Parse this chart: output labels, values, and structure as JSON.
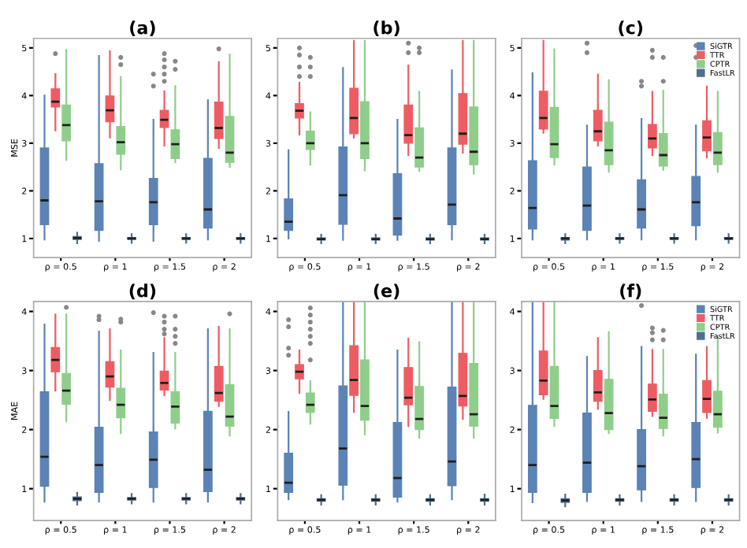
{
  "chart_data": [
    {
      "type": "box",
      "title": "(a)",
      "ylabel": "MSE",
      "categories": [
        "ρ = 0.5",
        "ρ = 1",
        "ρ = 1.5",
        "ρ = 2"
      ],
      "ylim": [
        0.6,
        5.2
      ],
      "yticks": [
        1,
        2,
        3,
        4,
        5
      ],
      "grid": false,
      "legend": false,
      "series": [
        {
          "color": "#5b83b5",
          "boxes": [
            {
              "low": 0.98,
              "q1": 1.29,
              "median": 1.8,
              "q3": 2.9,
              "high": 4.0
            },
            {
              "low": 0.95,
              "q1": 1.17,
              "median": 1.78,
              "q3": 2.57,
              "high": 4.83
            },
            {
              "low": 0.95,
              "q1": 1.29,
              "median": 1.76,
              "q3": 2.26,
              "high": 3.49,
              "outliers": [
                4.2,
                4.45
              ]
            },
            {
              "low": 0.98,
              "q1": 1.22,
              "median": 1.61,
              "q3": 2.68,
              "high": 3.9
            }
          ]
        },
        {
          "color": "#ee5c63",
          "boxes": [
            {
              "low": 3.27,
              "q1": 3.76,
              "median": 3.87,
              "q3": 4.14,
              "high": 4.45,
              "outliers": [
                4.88
              ]
            },
            {
              "low": 3.12,
              "q1": 3.45,
              "median": 3.69,
              "q3": 3.99,
              "high": 4.93
            },
            {
              "low": 2.95,
              "q1": 3.33,
              "median": 3.49,
              "q3": 3.69,
              "high": 4.09,
              "outliers": [
                4.3,
                4.45,
                4.6,
                4.75,
                4.88
              ]
            },
            {
              "low": 2.9,
              "q1": 3.1,
              "median": 3.32,
              "q3": 3.86,
              "high": 4.7,
              "outliers": [
                4.98
              ]
            }
          ]
        },
        {
          "color": "#8fce8a",
          "boxes": [
            {
              "low": 2.65,
              "q1": 3.05,
              "median": 3.38,
              "q3": 3.8,
              "high": 4.96
            },
            {
              "low": 2.45,
              "q1": 2.77,
              "median": 3.02,
              "q3": 3.35,
              "high": 4.39,
              "outliers": [
                4.65,
                4.8
              ]
            },
            {
              "low": 2.6,
              "q1": 2.68,
              "median": 2.98,
              "q3": 3.28,
              "high": 4.2,
              "outliers": [
                4.55,
                4.72
              ]
            },
            {
              "low": 2.5,
              "q1": 2.6,
              "median": 2.8,
              "q3": 3.56,
              "high": 4.86
            }
          ]
        },
        {
          "color": "#4e6f91",
          "boxes": [
            {
              "low": 0.9,
              "q1": 0.98,
              "median": 1.01,
              "q3": 1.04,
              "high": 1.12
            },
            {
              "low": 0.91,
              "q1": 0.98,
              "median": 1.0,
              "q3": 1.02,
              "high": 1.09
            },
            {
              "low": 0.91,
              "q1": 0.98,
              "median": 1.0,
              "q3": 1.02,
              "high": 1.09
            },
            {
              "low": 0.91,
              "q1": 0.98,
              "median": 1.0,
              "q3": 1.02,
              "high": 1.09
            }
          ]
        }
      ]
    },
    {
      "type": "box",
      "title": "(b)",
      "categories": [
        "ρ = 0.5",
        "ρ = 1",
        "ρ = 1.5",
        "ρ = 2"
      ],
      "ylim": [
        0.6,
        5.2
      ],
      "yticks": [
        1,
        2,
        3,
        4,
        5
      ],
      "grid": false,
      "legend": false,
      "series": [
        {
          "color": "#5b83b5",
          "boxes": [
            {
              "low": 1.0,
              "q1": 1.17,
              "median": 1.35,
              "q3": 1.83,
              "high": 2.85
            },
            {
              "low": 0.97,
              "q1": 1.3,
              "median": 1.91,
              "q3": 2.92,
              "high": 4.58
            },
            {
              "low": 0.97,
              "q1": 1.07,
              "median": 1.42,
              "q3": 2.36,
              "high": 3.49
            },
            {
              "low": 0.98,
              "q1": 1.29,
              "median": 1.71,
              "q3": 2.9,
              "high": 4.53
            }
          ]
        },
        {
          "color": "#ee5c63",
          "boxes": [
            {
              "low": 3.18,
              "q1": 3.53,
              "median": 3.68,
              "q3": 3.83,
              "high": 4.27,
              "outliers": [
                4.4,
                4.6,
                4.85,
                5.0
              ]
            },
            {
              "low": 3.12,
              "q1": 3.2,
              "median": 3.53,
              "q3": 4.15,
              "high": 5.15
            },
            {
              "low": 2.75,
              "q1": 3.0,
              "median": 3.17,
              "q3": 3.8,
              "high": 4.63,
              "outliers": [
                4.9,
                5.1
              ]
            },
            {
              "low": 2.8,
              "q1": 2.98,
              "median": 3.2,
              "q3": 4.04,
              "high": 5.15
            }
          ]
        },
        {
          "color": "#8fce8a",
          "boxes": [
            {
              "low": 2.55,
              "q1": 2.87,
              "median": 3.0,
              "q3": 3.25,
              "high": 3.65,
              "outliers": [
                4.4,
                4.6,
                4.8
              ]
            },
            {
              "low": 2.43,
              "q1": 2.68,
              "median": 3.0,
              "q3": 3.87,
              "high": 5.15
            },
            {
              "low": 2.42,
              "q1": 2.5,
              "median": 2.7,
              "q3": 3.32,
              "high": 4.08,
              "outliers": [
                4.9,
                5.0
              ]
            },
            {
              "low": 2.36,
              "q1": 2.55,
              "median": 2.82,
              "q3": 3.76,
              "high": 5.15
            }
          ]
        },
        {
          "color": "#4e6f91",
          "boxes": [
            {
              "low": 0.9,
              "q1": 0.97,
              "median": 0.99,
              "q3": 1.01,
              "high": 1.08
            },
            {
              "low": 0.9,
              "q1": 0.97,
              "median": 0.99,
              "q3": 1.01,
              "high": 1.08
            },
            {
              "low": 0.9,
              "q1": 0.97,
              "median": 0.99,
              "q3": 1.01,
              "high": 1.08
            },
            {
              "low": 0.9,
              "q1": 0.97,
              "median": 0.99,
              "q3": 1.01,
              "high": 1.08
            }
          ]
        }
      ]
    },
    {
      "type": "box",
      "title": "(c)",
      "categories": [
        "ρ = 0.5",
        "ρ = 1",
        "ρ = 1.5",
        "ρ = 2"
      ],
      "ylim": [
        0.6,
        5.2
      ],
      "yticks": [
        1,
        2,
        3,
        4,
        5
      ],
      "grid": false,
      "legend": "top right",
      "series": [
        {
          "name": "SiGTR",
          "color": "#5b83b5",
          "boxes": [
            {
              "low": 0.98,
              "q1": 1.2,
              "median": 1.64,
              "q3": 2.63,
              "high": 4.47
            },
            {
              "low": 0.98,
              "q1": 1.17,
              "median": 1.69,
              "q3": 2.5,
              "high": 3.37,
              "outliers": [
                4.9,
                5.1
              ]
            },
            {
              "low": 0.98,
              "q1": 1.22,
              "median": 1.61,
              "q3": 2.23,
              "high": 3.51,
              "outliers": [
                4.2,
                4.3
              ]
            },
            {
              "low": 0.98,
              "q1": 1.27,
              "median": 1.76,
              "q3": 2.3,
              "high": 3.37,
              "outliers": [
                4.8,
                5.05
              ]
            }
          ]
        },
        {
          "name": "TTR",
          "color": "#ee5c63",
          "boxes": [
            {
              "low": 3.22,
              "q1": 3.3,
              "median": 3.53,
              "q3": 4.09,
              "high": 5.15
            },
            {
              "low": 2.95,
              "q1": 3.05,
              "median": 3.25,
              "q3": 3.69,
              "high": 4.44
            },
            {
              "low": 2.75,
              "q1": 2.9,
              "median": 3.1,
              "q3": 3.39,
              "high": 4.08,
              "outliers": [
                4.8,
                4.95
              ]
            },
            {
              "low": 2.7,
              "q1": 2.84,
              "median": 3.12,
              "q3": 3.47,
              "high": 4.19
            }
          ]
        },
        {
          "name": "CPTR",
          "color": "#8fce8a",
          "boxes": [
            {
              "low": 2.55,
              "q1": 2.7,
              "median": 2.98,
              "q3": 3.75,
              "high": 4.97
            },
            {
              "low": 2.4,
              "q1": 2.55,
              "median": 2.85,
              "q3": 3.44,
              "high": 4.32
            },
            {
              "low": 2.44,
              "q1": 2.52,
              "median": 2.75,
              "q3": 3.2,
              "high": 4.1,
              "outliers": [
                4.3,
                4.8
              ]
            },
            {
              "low": 2.4,
              "q1": 2.55,
              "median": 2.8,
              "q3": 3.22,
              "high": 4.08
            }
          ]
        },
        {
          "name": "FastLR",
          "color": "#4e6f91",
          "boxes": [
            {
              "low": 0.9,
              "q1": 0.97,
              "median": 1.0,
              "q3": 1.02,
              "high": 1.09
            },
            {
              "low": 0.91,
              "q1": 0.98,
              "median": 1.0,
              "q3": 1.02,
              "high": 1.09
            },
            {
              "low": 0.91,
              "q1": 0.98,
              "median": 1.0,
              "q3": 1.02,
              "high": 1.09
            },
            {
              "low": 0.91,
              "q1": 0.98,
              "median": 1.0,
              "q3": 1.02,
              "high": 1.09
            }
          ]
        }
      ]
    },
    {
      "type": "box",
      "title": "(d)",
      "ylabel": "MAE",
      "categories": [
        "ρ = 0.5",
        "ρ = 1",
        "ρ = 1.5",
        "ρ = 2"
      ],
      "ylim": [
        0.46,
        4.17
      ],
      "yticks": [
        1,
        2,
        3,
        4
      ],
      "grid": false,
      "legend": false,
      "series": [
        {
          "color": "#5b83b5",
          "boxes": [
            {
              "low": 0.78,
              "q1": 1.04,
              "median": 1.54,
              "q3": 2.64,
              "high": 3.78
            },
            {
              "low": 0.78,
              "q1": 0.94,
              "median": 1.4,
              "q3": 2.04,
              "high": 3.66,
              "outliers": [
                3.86,
                3.92
              ]
            },
            {
              "low": 0.78,
              "q1": 1.02,
              "median": 1.49,
              "q3": 1.96,
              "high": 3.3,
              "outliers": [
                3.98
              ]
            },
            {
              "low": 0.78,
              "q1": 0.95,
              "median": 1.32,
              "q3": 2.31,
              "high": 3.7
            }
          ]
        },
        {
          "color": "#ee5c63",
          "boxes": [
            {
              "low": 2.66,
              "q1": 2.98,
              "median": 3.18,
              "q3": 3.39,
              "high": 3.95
            },
            {
              "low": 2.5,
              "q1": 2.72,
              "median": 2.9,
              "q3": 3.15,
              "high": 3.7
            },
            {
              "low": 2.58,
              "q1": 2.67,
              "median": 2.79,
              "q3": 2.99,
              "high": 3.55,
              "outliers": [
                3.62,
                3.7,
                3.82,
                3.92
              ]
            },
            {
              "low": 2.4,
              "q1": 2.48,
              "median": 2.62,
              "q3": 3.07,
              "high": 3.74
            }
          ]
        },
        {
          "color": "#8fce8a",
          "boxes": [
            {
              "low": 2.14,
              "q1": 2.43,
              "median": 2.66,
              "q3": 2.95,
              "high": 3.95,
              "outliers": [
                4.07
              ]
            },
            {
              "low": 1.94,
              "q1": 2.2,
              "median": 2.42,
              "q3": 2.7,
              "high": 3.34,
              "outliers": [
                3.82,
                3.87
              ]
            },
            {
              "low": 2.02,
              "q1": 2.11,
              "median": 2.39,
              "q3": 2.64,
              "high": 3.3,
              "outliers": [
                3.46,
                3.58,
                3.7,
                3.92
              ]
            },
            {
              "low": 1.9,
              "q1": 2.06,
              "median": 2.22,
              "q3": 2.76,
              "high": 3.7,
              "outliers": [
                3.96
              ]
            }
          ]
        },
        {
          "color": "#4e6f91",
          "boxes": [
            {
              "low": 0.73,
              "q1": 0.8,
              "median": 0.83,
              "q3": 0.86,
              "high": 0.93
            },
            {
              "low": 0.75,
              "q1": 0.81,
              "median": 0.83,
              "q3": 0.85,
              "high": 0.91
            },
            {
              "low": 0.75,
              "q1": 0.81,
              "median": 0.83,
              "q3": 0.85,
              "high": 0.91
            },
            {
              "low": 0.75,
              "q1": 0.81,
              "median": 0.83,
              "q3": 0.85,
              "high": 0.91
            }
          ]
        }
      ]
    },
    {
      "type": "box",
      "title": "(e)",
      "categories": [
        "ρ = 0.5",
        "ρ = 1",
        "ρ = 1.5",
        "ρ = 2"
      ],
      "ylim": [
        0.46,
        4.17
      ],
      "yticks": [
        1,
        2,
        3,
        4
      ],
      "grid": false,
      "legend": false,
      "series": [
        {
          "color": "#5b83b5",
          "boxes": [
            {
              "low": 0.82,
              "q1": 0.94,
              "median": 1.1,
              "q3": 1.6,
              "high": 2.3,
              "outliers": [
                3.26,
                3.38,
                3.74,
                3.86
              ]
            },
            {
              "low": 0.82,
              "q1": 1.06,
              "median": 1.68,
              "q3": 2.74,
              "high": 4.15
            },
            {
              "low": 0.78,
              "q1": 0.86,
              "median": 1.18,
              "q3": 2.12,
              "high": 3.34
            },
            {
              "low": 0.82,
              "q1": 1.05,
              "median": 1.46,
              "q3": 2.72,
              "high": 4.15
            }
          ]
        },
        {
          "color": "#ee5c63",
          "boxes": [
            {
              "low": 2.62,
              "q1": 2.86,
              "median": 2.98,
              "q3": 3.1,
              "high": 3.34
            },
            {
              "low": 2.3,
              "q1": 2.58,
              "median": 2.84,
              "q3": 3.42,
              "high": 4.15
            },
            {
              "low": 2.06,
              "q1": 2.42,
              "median": 2.54,
              "q3": 3.05,
              "high": 3.54
            },
            {
              "low": 2.18,
              "q1": 2.4,
              "median": 2.57,
              "q3": 3.29,
              "high": 4.15
            }
          ]
        },
        {
          "color": "#8fce8a",
          "boxes": [
            {
              "low": 2.1,
              "q1": 2.29,
              "median": 2.42,
              "q3": 2.62,
              "high": 2.82,
              "outliers": [
                3.18,
                3.46,
                3.58,
                3.7,
                3.82,
                3.94,
                4.06
              ]
            },
            {
              "low": 1.92,
              "q1": 2.16,
              "median": 2.4,
              "q3": 3.18,
              "high": 4.15
            },
            {
              "low": 1.86,
              "q1": 2.0,
              "median": 2.18,
              "q3": 2.73,
              "high": 3.48
            },
            {
              "low": 1.86,
              "q1": 2.06,
              "median": 2.26,
              "q3": 3.12,
              "high": 4.15
            }
          ]
        },
        {
          "color": "#4e6f91",
          "boxes": [
            {
              "low": 0.73,
              "q1": 0.79,
              "median": 0.81,
              "q3": 0.83,
              "high": 0.89
            },
            {
              "low": 0.73,
              "q1": 0.79,
              "median": 0.81,
              "q3": 0.83,
              "high": 0.89
            },
            {
              "low": 0.73,
              "q1": 0.79,
              "median": 0.81,
              "q3": 0.83,
              "high": 0.89
            },
            {
              "low": 0.73,
              "q1": 0.79,
              "median": 0.81,
              "q3": 0.83,
              "high": 0.9
            }
          ]
        }
      ]
    },
    {
      "type": "box",
      "title": "(f)",
      "categories": [
        "ρ = 0.5",
        "ρ = 1",
        "ρ = 1.5",
        "ρ = 2"
      ],
      "ylim": [
        0.46,
        4.17
      ],
      "yticks": [
        1,
        2,
        3,
        4
      ],
      "grid": false,
      "legend": "top right",
      "series": [
        {
          "name": "SiGTR",
          "color": "#5b83b5",
          "boxes": [
            {
              "low": 0.77,
              "q1": 0.94,
              "median": 1.4,
              "q3": 2.41,
              "high": 4.15
            },
            {
              "low": 0.79,
              "q1": 0.94,
              "median": 1.44,
              "q3": 2.28,
              "high": 3.23
            },
            {
              "low": 0.79,
              "q1": 0.98,
              "median": 1.38,
              "q3": 2.0,
              "high": 3.4,
              "outliers": [
                4.1
              ]
            },
            {
              "low": 0.79,
              "q1": 1.02,
              "median": 1.5,
              "q3": 2.12,
              "high": 3.27
            }
          ]
        },
        {
          "name": "TTR",
          "color": "#ee5c63",
          "boxes": [
            {
              "low": 2.52,
              "q1": 2.59,
              "median": 2.83,
              "q3": 3.33,
              "high": 4.15
            },
            {
              "low": 2.35,
              "q1": 2.48,
              "median": 2.63,
              "q3": 3.0,
              "high": 3.55
            },
            {
              "low": 2.23,
              "q1": 2.31,
              "median": 2.51,
              "q3": 2.77,
              "high": 3.35,
              "outliers": [
                3.52,
                3.64,
                3.72
              ]
            },
            {
              "low": 2.2,
              "q1": 2.29,
              "median": 2.52,
              "q3": 2.83,
              "high": 3.4
            }
          ]
        },
        {
          "name": "CPTR",
          "color": "#8fce8a",
          "boxes": [
            {
              "low": 2.06,
              "q1": 2.19,
              "median": 2.4,
              "q3": 3.07,
              "high": 4.15
            },
            {
              "low": 1.94,
              "q1": 2.0,
              "median": 2.28,
              "q3": 2.85,
              "high": 3.65
            },
            {
              "low": 1.9,
              "q1": 2.02,
              "median": 2.2,
              "q3": 2.6,
              "high": 3.35,
              "outliers": [
                3.52,
                3.68
              ]
            },
            {
              "low": 1.95,
              "q1": 2.04,
              "median": 2.26,
              "q3": 2.65,
              "high": 3.56
            }
          ]
        },
        {
          "name": "FastLR",
          "color": "#4e6f91",
          "boxes": [
            {
              "low": 0.7,
              "q1": 0.77,
              "median": 0.8,
              "q3": 0.83,
              "high": 0.9
            },
            {
              "low": 0.73,
              "q1": 0.79,
              "median": 0.81,
              "q3": 0.83,
              "high": 0.89
            },
            {
              "low": 0.73,
              "q1": 0.79,
              "median": 0.81,
              "q3": 0.83,
              "high": 0.89
            },
            {
              "low": 0.73,
              "q1": 0.79,
              "median": 0.81,
              "q3": 0.83,
              "high": 0.89
            }
          ]
        }
      ]
    }
  ]
}
